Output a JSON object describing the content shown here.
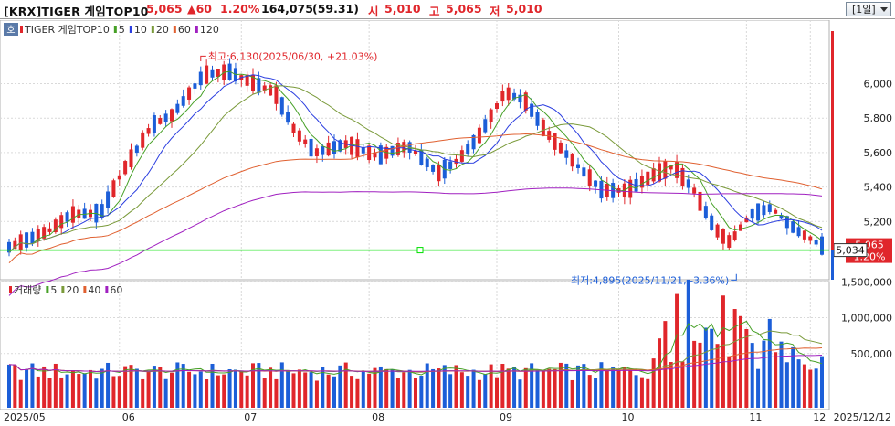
{
  "header": {
    "market": "[KRX]",
    "name": "TIGER 게임TOP10",
    "price": "5,065",
    "change": "▲60",
    "change_pct": "1.20%",
    "volume": "164,075",
    "volume_ratio": "(59.31)",
    "open_label": "시",
    "open": "5,010",
    "high_label": "고",
    "high": "5,065",
    "low_label": "저",
    "low": "5,010",
    "period": "[1일]"
  },
  "colors": {
    "up": "#e0262b",
    "down": "#1c5ed8",
    "ma5": "#46a026",
    "ma10": "#2b3ee0",
    "ma20": "#7a9a3a",
    "ma60": "#e06030",
    "ma120": "#a020c0",
    "hline": "#00e000",
    "grid": "#d9d9d9"
  },
  "price_panel": {
    "badge": "호",
    "legend": [
      {
        "label": "TIGER 게임TOP10",
        "color": "#e0262b"
      },
      {
        "label": "5",
        "color": "#46a026"
      },
      {
        "label": "10",
        "color": "#2b3ee0"
      },
      {
        "label": "20",
        "color": "#7a9a3a"
      },
      {
        "label": "60",
        "color": "#e06030"
      },
      {
        "label": "120",
        "color": "#a020c0"
      }
    ],
    "high_annotation": "최고:6,130(2025/06/30, +21.03%)",
    "low_annotation": "최저:4,895(2025/11/21, -3.36%)",
    "y_ticks": [
      "6,000",
      "5,800",
      "5,600",
      "5,400",
      "5,200"
    ],
    "current_price_label": "5,034",
    "last_price_tag": "5,065",
    "last_pct_tag": "1.20%",
    "horizontal_line_price": 5034
  },
  "volume_panel": {
    "legend": [
      {
        "label": "거래량",
        "color": "#e0262b"
      },
      {
        "label": "5",
        "color": "#46a026"
      },
      {
        "label": "20",
        "color": "#7a9a3a"
      },
      {
        "label": "40",
        "color": "#e06030"
      },
      {
        "label": "60",
        "color": "#a020c0"
      }
    ],
    "y_ticks": [
      "1,500,000",
      "1,000,000",
      "500,000"
    ]
  },
  "x_axis": [
    "2025/05",
    "06",
    "07",
    "08",
    "09",
    "10",
    "11",
    "12",
    "2025/12/12"
  ]
}
